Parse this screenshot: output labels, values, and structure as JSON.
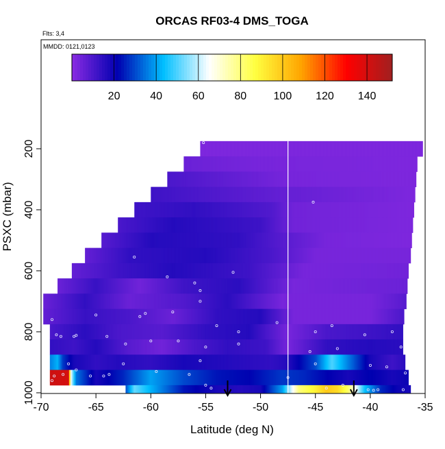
{
  "chart_data": {
    "type": "heatmap",
    "title": "ORCAS RF03-4 DMS_TOGA",
    "flights_note": "Flts: 3,4",
    "dates_note": "MMDD: 0121,0123",
    "xlabel": "Latitude (deg N)",
    "ylabel": "PSXC (mbar)",
    "xlim": [
      -70,
      -35
    ],
    "ylim": [
      1000,
      100
    ],
    "x_ticks": [
      -70,
      -65,
      -60,
      -55,
      -50,
      -45,
      -40,
      -35
    ],
    "y_ticks": [
      200,
      400,
      600,
      800,
      1000
    ],
    "colorbar": {
      "range": [
        0,
        152
      ],
      "ticks": [
        20,
        40,
        60,
        80,
        100,
        120,
        140
      ],
      "stops": [
        "#8a2be2",
        "#0000b0",
        "#00bfff",
        "#ffffff",
        "#ffff40",
        "#ffa500",
        "#ff0000",
        "#a02020"
      ]
    },
    "divider_latitude": -47.5,
    "arrow_latitudes": [
      -53,
      -41.5
    ],
    "rows": [
      {
        "p_top": 175,
        "p_bot": 225,
        "x_left": -55.5,
        "x_right": -35.2,
        "segments": [
          [
            -55.5,
            2
          ],
          [
            -35.2,
            2
          ]
        ]
      },
      {
        "p_top": 225,
        "p_bot": 275,
        "x_left": -57,
        "x_right": -35.7,
        "segments": [
          [
            -57,
            5
          ],
          [
            -50,
            3
          ],
          [
            -35.7,
            2
          ]
        ]
      },
      {
        "p_top": 275,
        "p_bot": 325,
        "x_left": -58.5,
        "x_right": -35.8,
        "segments": [
          [
            -58.5,
            10
          ],
          [
            -52,
            6
          ],
          [
            -47.5,
            3
          ],
          [
            -35.8,
            2
          ]
        ]
      },
      {
        "p_top": 325,
        "p_bot": 375,
        "x_left": -60,
        "x_right": -35.9,
        "segments": [
          [
            -60,
            12
          ],
          [
            -54,
            9
          ],
          [
            -48,
            6
          ],
          [
            -35.9,
            2
          ]
        ]
      },
      {
        "p_top": 375,
        "p_bot": 425,
        "x_left": -61.5,
        "x_right": -36,
        "segments": [
          [
            -61.5,
            12
          ],
          [
            -56,
            14
          ],
          [
            -49,
            9
          ],
          [
            -47,
            4
          ],
          [
            -36,
            2
          ]
        ]
      },
      {
        "p_top": 425,
        "p_bot": 475,
        "x_left": -63,
        "x_right": -36.1,
        "segments": [
          [
            -63,
            10
          ],
          [
            -58,
            16
          ],
          [
            -50,
            12
          ],
          [
            -47,
            4
          ],
          [
            -36,
            2
          ]
        ]
      },
      {
        "p_top": 475,
        "p_bot": 525,
        "x_left": -64.5,
        "x_right": -36.2,
        "segments": [
          [
            -64.5,
            8
          ],
          [
            -60,
            16
          ],
          [
            -52,
            14
          ],
          [
            -48,
            8
          ],
          [
            -44,
            3
          ],
          [
            -36.2,
            2
          ]
        ]
      },
      {
        "p_top": 525,
        "p_bot": 575,
        "x_left": -66,
        "x_right": -36.3,
        "segments": [
          [
            -66,
            6
          ],
          [
            -62,
            14
          ],
          [
            -55,
            16
          ],
          [
            -49,
            10
          ],
          [
            -45,
            3
          ],
          [
            -36.3,
            3
          ]
        ]
      },
      {
        "p_top": 575,
        "p_bot": 625,
        "x_left": -67.2,
        "x_right": -36.5,
        "segments": [
          [
            -67.2,
            6
          ],
          [
            -63,
            12
          ],
          [
            -58,
            16
          ],
          [
            -51,
            12
          ],
          [
            -46,
            3
          ],
          [
            -36.5,
            4
          ]
        ]
      },
      {
        "p_top": 625,
        "p_bot": 675,
        "x_left": -68.5,
        "x_right": -36.6,
        "segments": [
          [
            -68.5,
            5
          ],
          [
            -65,
            13
          ],
          [
            -61,
            4
          ],
          [
            -57,
            12
          ],
          [
            -52,
            15
          ],
          [
            -47,
            3
          ],
          [
            -36.6,
            5
          ]
        ]
      },
      {
        "p_top": 675,
        "p_bot": 725,
        "x_left": -69.8,
        "x_right": -36.7,
        "segments": [
          [
            -69.8,
            5
          ],
          [
            -66,
            14
          ],
          [
            -62,
            5
          ],
          [
            -57,
            9
          ],
          [
            -53,
            15
          ],
          [
            -48,
            3
          ],
          [
            -40,
            3
          ],
          [
            -36.7,
            8
          ]
        ]
      },
      {
        "p_top": 725,
        "p_bot": 775,
        "x_left": -69.8,
        "x_right": -36.9,
        "segments": [
          [
            -69.8,
            6
          ],
          [
            -66,
            13
          ],
          [
            -62,
            10
          ],
          [
            -58,
            5
          ],
          [
            -54,
            14
          ],
          [
            -50,
            16
          ],
          [
            -47,
            3
          ],
          [
            -40,
            3
          ],
          [
            -36.9,
            10
          ]
        ]
      },
      {
        "p_top": 775,
        "p_bot": 825,
        "x_left": -69.2,
        "x_right": -37,
        "segments": [
          [
            -69.2,
            10
          ],
          [
            -66,
            15
          ],
          [
            -63,
            10
          ],
          [
            -59,
            8
          ],
          [
            -55,
            14
          ],
          [
            -51,
            16
          ],
          [
            -47.5,
            3
          ],
          [
            -44,
            10
          ],
          [
            -40,
            12
          ],
          [
            -37,
            14
          ]
        ]
      },
      {
        "p_top": 825,
        "p_bot": 875,
        "x_left": -69.2,
        "x_right": -37,
        "segments": [
          [
            -69.2,
            14
          ],
          [
            -67,
            12
          ],
          [
            -65,
            16
          ],
          [
            -62,
            8
          ],
          [
            -59,
            4
          ],
          [
            -56,
            10
          ],
          [
            -53,
            14
          ],
          [
            -49.5,
            12
          ],
          [
            -47.5,
            3
          ],
          [
            -44,
            14
          ],
          [
            -40,
            16
          ],
          [
            -37,
            15
          ]
        ]
      },
      {
        "p_top": 875,
        "p_bot": 925,
        "x_left": -69.2,
        "x_right": -36.8,
        "segments": [
          [
            -69.2,
            36
          ],
          [
            -68.5,
            42
          ],
          [
            -68,
            28
          ],
          [
            -67,
            18
          ],
          [
            -65,
            14
          ],
          [
            -63,
            16
          ],
          [
            -60,
            14
          ],
          [
            -57,
            18
          ],
          [
            -53,
            16
          ],
          [
            -49,
            14
          ],
          [
            -47.5,
            16
          ],
          [
            -45,
            30
          ],
          [
            -43.5,
            50
          ],
          [
            -42,
            36
          ],
          [
            -40,
            18
          ],
          [
            -38,
            12
          ],
          [
            -36.8,
            15
          ]
        ]
      },
      {
        "p_top": 925,
        "p_bot": 975,
        "x_left": -69.2,
        "x_right": -36.5,
        "segments": [
          [
            -69.2,
            142
          ],
          [
            -67.5,
            140
          ],
          [
            -67.3,
            65
          ],
          [
            -66.8,
            35
          ],
          [
            -65,
            18
          ],
          [
            -62.5,
            26
          ],
          [
            -60,
            40
          ],
          [
            -57,
            30
          ],
          [
            -54,
            24
          ],
          [
            -51,
            22
          ],
          [
            -48,
            28
          ],
          [
            -46,
            26
          ],
          [
            -44,
            22
          ],
          [
            -42,
            18
          ],
          [
            -40,
            22
          ],
          [
            -38,
            18
          ],
          [
            -36.5,
            20
          ]
        ]
      },
      {
        "p_top": 975,
        "p_bot": 1000,
        "x_left": -62.3,
        "x_right": -36.3,
        "segments": [
          [
            -62.3,
            30
          ],
          [
            -61.5,
            52
          ],
          [
            -60,
            42
          ],
          [
            -57,
            24
          ],
          [
            -54,
            18
          ],
          [
            -52,
            16
          ],
          [
            -50,
            18
          ],
          [
            -48,
            40
          ],
          [
            -46.5,
            80
          ],
          [
            -45,
            90
          ],
          [
            -44,
            100
          ],
          [
            -43,
            96
          ],
          [
            -42,
            82
          ],
          [
            -40.5,
            44
          ],
          [
            -39,
            26
          ],
          [
            -37.5,
            20
          ],
          [
            -36.3,
            18
          ]
        ]
      }
    ],
    "sample_points": [
      [
        -55.2,
        180
      ],
      [
        -45.2,
        375
      ],
      [
        -61.5,
        555
      ],
      [
        -58.5,
        620
      ],
      [
        -56,
        640
      ],
      [
        -52.5,
        605
      ],
      [
        -55.5,
        665
      ],
      [
        -55.5,
        700
      ],
      [
        -60.5,
        740
      ],
      [
        -69,
        760
      ],
      [
        -65,
        745
      ],
      [
        -61,
        750
      ],
      [
        -58,
        735
      ],
      [
        -54,
        780
      ],
      [
        -52,
        800
      ],
      [
        -48.5,
        770
      ],
      [
        -45,
        800
      ],
      [
        -43.5,
        780
      ],
      [
        -40.5,
        810
      ],
      [
        -38,
        800
      ],
      [
        -68.6,
        810
      ],
      [
        -68.2,
        815
      ],
      [
        -67,
        815
      ],
      [
        -66.8,
        812
      ],
      [
        -64,
        815
      ],
      [
        -62.3,
        840
      ],
      [
        -60,
        830
      ],
      [
        -57.5,
        830
      ],
      [
        -55,
        850
      ],
      [
        -52,
        840
      ],
      [
        -45.5,
        865
      ],
      [
        -43,
        855
      ],
      [
        -37.2,
        850
      ],
      [
        -68.8,
        945
      ],
      [
        -68,
        940
      ],
      [
        -67.5,
        905
      ],
      [
        -66.8,
        925
      ],
      [
        -65.5,
        945
      ],
      [
        -64.3,
        945
      ],
      [
        -63.8,
        940
      ],
      [
        -62.5,
        905
      ],
      [
        -59.5,
        930
      ],
      [
        -56.5,
        940
      ],
      [
        -55.5,
        895
      ],
      [
        -47.5,
        950
      ],
      [
        -45,
        905
      ],
      [
        -40,
        910
      ],
      [
        -38.5,
        915
      ],
      [
        -36.8,
        935
      ],
      [
        -55,
        975
      ],
      [
        -54.5,
        985
      ],
      [
        -44,
        985
      ],
      [
        -42.5,
        975
      ],
      [
        -40.2,
        990
      ],
      [
        -39.7,
        992
      ],
      [
        -39.3,
        990
      ],
      [
        -37,
        990
      ],
      [
        -69,
        960
      ]
    ]
  }
}
